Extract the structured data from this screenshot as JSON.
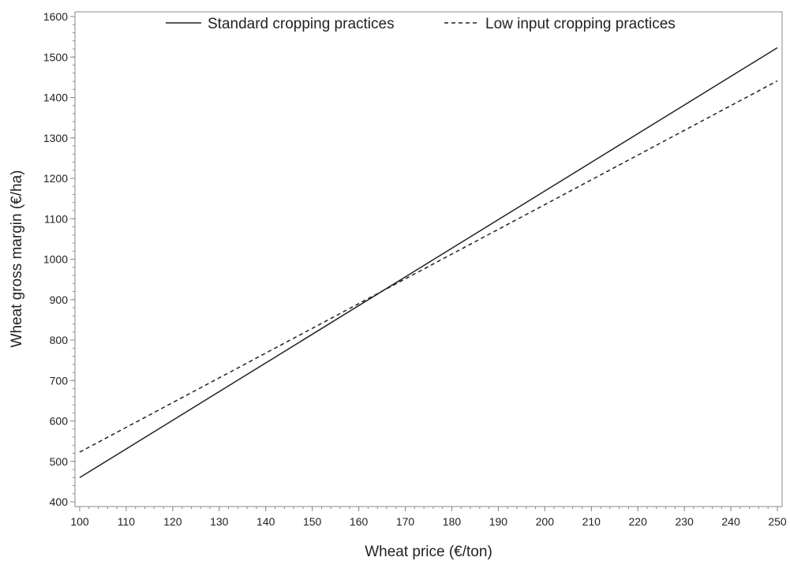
{
  "chart_data": {
    "type": "line",
    "xlabel": "Wheat price (€/ton)",
    "ylabel": "Wheat gross margin (€/ha)",
    "xlim": [
      100,
      250
    ],
    "ylim": [
      400,
      1600
    ],
    "x_ticks": [
      100,
      110,
      120,
      130,
      140,
      150,
      160,
      170,
      180,
      190,
      200,
      210,
      220,
      230,
      240,
      250
    ],
    "y_ticks": [
      400,
      500,
      600,
      700,
      800,
      900,
      1000,
      1100,
      1200,
      1300,
      1400,
      1500,
      1600
    ],
    "grid": false,
    "legend_position": "top",
    "series": [
      {
        "name": "Standard cropping practices",
        "line_style": "solid",
        "color": "#222222",
        "x": [
          100,
          250
        ],
        "y": [
          460,
          1523
        ]
      },
      {
        "name": "Low input cropping practices",
        "line_style": "dashed",
        "color": "#222222",
        "x": [
          100,
          250
        ],
        "y": [
          523,
          1441
        ]
      }
    ]
  }
}
